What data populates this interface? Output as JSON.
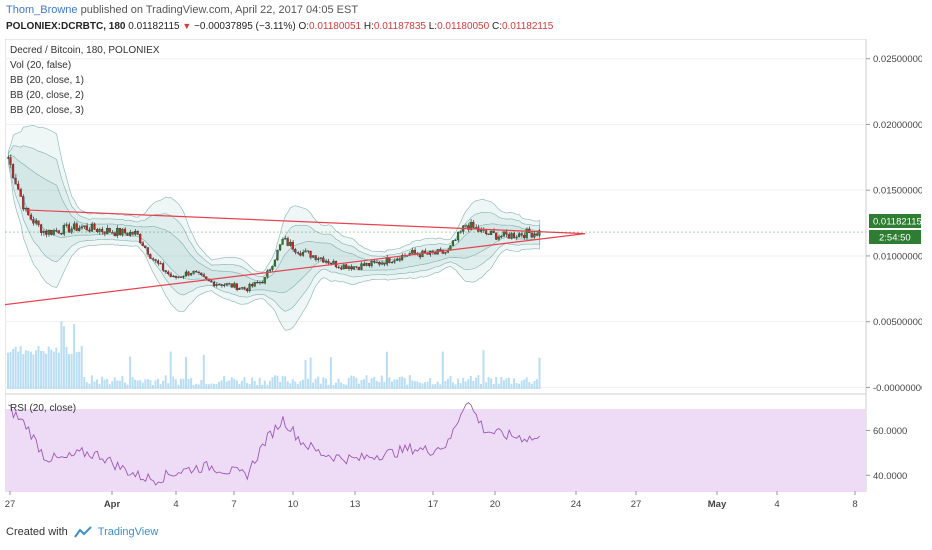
{
  "header": {
    "author": "Thom_Browne",
    "published": "published on TradingView.com, April 22, 2017 04:05 EST"
  },
  "ohlc": {
    "symbol": "POLONIEX:DCRBTC, 180",
    "price": "0.01182115",
    "change": "−0.00037895 (−3.11%)",
    "o_label": "O:",
    "o": "0.01180051",
    "h_label": "H:",
    "h": "0.01187835",
    "l_label": "L:",
    "l": "0.01180050",
    "c_label": "C:",
    "c": "0.01182115"
  },
  "legend": [
    "Decred / Bitcoin, 180, POLONIEX",
    "Vol (20, false)",
    "BB (20, close, 1)",
    "BB (20, close, 2)",
    "BB (20, close, 3)"
  ],
  "rsi_label": "RSI (20, close)",
  "price_badge": "0.01182115",
  "countdown_badge": "2:54:50",
  "footer": {
    "created": "Created with",
    "brand": "TradingView"
  },
  "colors": {
    "up": "#2e7d32",
    "down": "#c62828",
    "trendline": "#e8424f",
    "bb_fill": "#5fb3a8",
    "vol": "#9bd0f0",
    "rsi_fill": "#eedcf7",
    "rsi_line": "#9b59b6"
  },
  "chart_data": {
    "type": "candlestick",
    "y_axis_ticks": [
      "0.02500000",
      "0.02000000",
      "0.01500000",
      "0.01000000",
      "0.00500000",
      "-0.00000000"
    ],
    "y_range": [
      -0.0005,
      0.0265
    ],
    "rsi_axis_ticks": [
      "60.0000",
      "40.0000"
    ],
    "rsi_range": [
      33,
      74
    ],
    "x_tick_labels": [
      "27",
      "Apr",
      "4",
      "7",
      "10",
      "13",
      "17",
      "20",
      "24",
      "27",
      "May",
      "4",
      "8"
    ],
    "close_series": [
      0.0175,
      0.0132,
      0.0118,
      0.012,
      0.0122,
      0.012,
      0.0118,
      0.0117,
      0.0096,
      0.0083,
      0.0088,
      0.008,
      0.0078,
      0.0075,
      0.0082,
      0.0112,
      0.0103,
      0.0099,
      0.0093,
      0.0092,
      0.0094,
      0.0098,
      0.0102,
      0.0101,
      0.0103,
      0.0124,
      0.0117,
      0.0115,
      0.0117,
      0.0118
    ],
    "trendlines": [
      {
        "from": [
          "Mar 27",
          0.0135
        ],
        "to": [
          "Apr 24",
          0.0117
        ]
      },
      {
        "from": [
          "Mar 26",
          0.0063
        ],
        "to": [
          "Apr 24",
          0.0117
        ]
      }
    ],
    "rsi_series": [
      70,
      62,
      48,
      47,
      50,
      49,
      44,
      40,
      38,
      41,
      43,
      44,
      42,
      40,
      55,
      65,
      55,
      50,
      48,
      47,
      49,
      50,
      52,
      51,
      54,
      74,
      60,
      58,
      57,
      56
    ]
  }
}
